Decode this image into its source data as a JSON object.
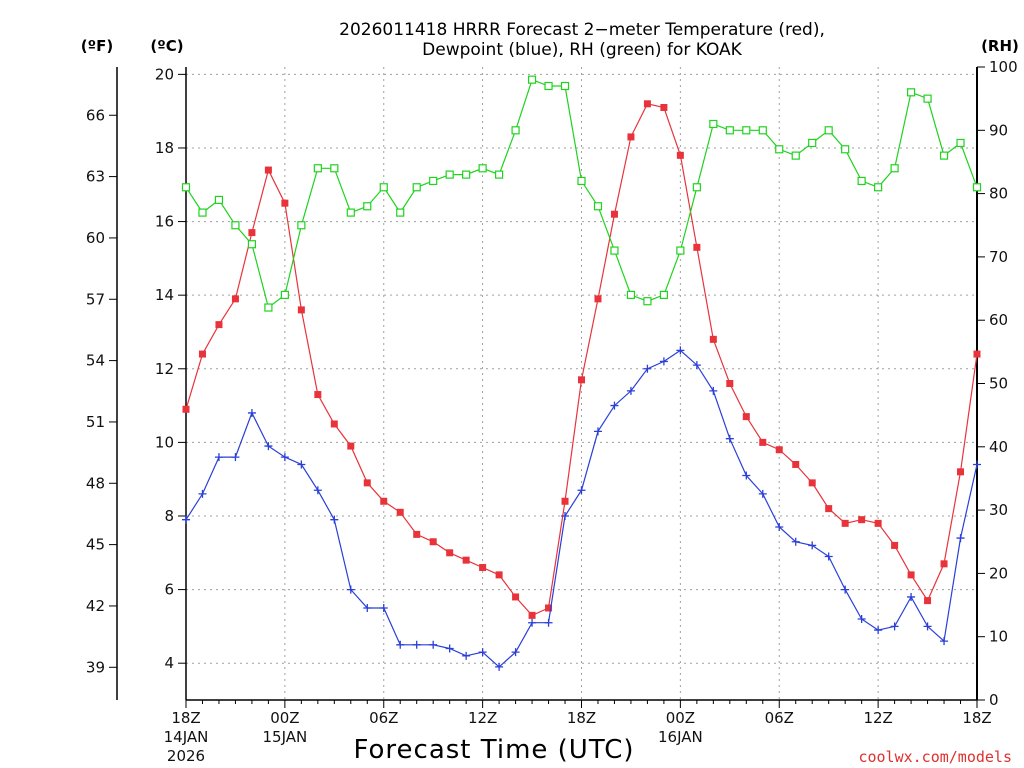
{
  "chart_data": {
    "type": "line",
    "title_lines": [
      "2026011418 HRRR Forecast 2−meter Temperature (red),",
      "Dewpoint (blue), RH (green) for KOAK"
    ],
    "unit_labels": {
      "fahrenheit": "(ºF)",
      "celsius": "(ºC)",
      "rh": "(RH)"
    },
    "xlabel": "Forecast Time (UTC)",
    "credit": "coolwx.com/models",
    "x_range": [
      0,
      48
    ],
    "celsius_range": [
      3,
      20.2
    ],
    "rh_range": [
      0,
      100
    ],
    "celsius_ticks": [
      4,
      6,
      8,
      10,
      12,
      14,
      16,
      18,
      20
    ],
    "fahrenheit_ticks": [
      39,
      42,
      45,
      48,
      51,
      54,
      57,
      60,
      63,
      66
    ],
    "rh_ticks": [
      0,
      10,
      20,
      30,
      40,
      50,
      60,
      70,
      80,
      90,
      100
    ],
    "x_ticks": [
      {
        "hour": 0,
        "label": "18Z",
        "date": "14JAN",
        "year": "2026"
      },
      {
        "hour": 6,
        "label": "00Z",
        "date": "15JAN",
        "year": ""
      },
      {
        "hour": 12,
        "label": "06Z",
        "date": "",
        "year": ""
      },
      {
        "hour": 18,
        "label": "12Z",
        "date": "",
        "year": ""
      },
      {
        "hour": 24,
        "label": "18Z",
        "date": "",
        "year": ""
      },
      {
        "hour": 30,
        "label": "00Z",
        "date": "16JAN",
        "year": ""
      },
      {
        "hour": 36,
        "label": "06Z",
        "date": "",
        "year": ""
      },
      {
        "hour": 42,
        "label": "12Z",
        "date": "",
        "year": ""
      },
      {
        "hour": 48,
        "label": "18Z",
        "date": "",
        "year": ""
      }
    ],
    "series": [
      {
        "name": "Temperature",
        "units": "ºC",
        "color": "#e8333b",
        "marker": "filled-square",
        "values": [
          10.9,
          12.4,
          13.2,
          13.9,
          15.7,
          17.4,
          16.5,
          13.6,
          11.3,
          10.5,
          9.9,
          8.9,
          8.4,
          8.1,
          7.5,
          7.3,
          7.0,
          6.8,
          6.6,
          6.4,
          5.8,
          5.3,
          5.5,
          8.4,
          11.7,
          13.9,
          16.2,
          18.3,
          19.2,
          19.1,
          17.8,
          15.3,
          12.8,
          11.6,
          10.7,
          10.0,
          9.8,
          9.4,
          8.9,
          8.2,
          7.8,
          7.9,
          7.8,
          7.2,
          6.4,
          5.7,
          6.7,
          9.2,
          12.4
        ]
      },
      {
        "name": "Dewpoint",
        "units": "ºC",
        "color": "#2a3fd8",
        "marker": "plus",
        "values": [
          7.9,
          8.6,
          9.6,
          9.6,
          10.8,
          9.9,
          9.6,
          9.4,
          8.7,
          7.9,
          6.0,
          5.5,
          5.5,
          4.5,
          4.5,
          4.5,
          4.4,
          4.2,
          4.3,
          3.9,
          4.3,
          5.1,
          5.1,
          8.0,
          8.7,
          10.3,
          11.0,
          11.4,
          12.0,
          12.2,
          12.5,
          12.1,
          11.4,
          10.1,
          9.1,
          8.6,
          7.7,
          7.3,
          7.2,
          6.9,
          6.0,
          5.2,
          4.9,
          5.0,
          5.8,
          5.0,
          4.6,
          7.4,
          9.4
        ]
      },
      {
        "name": "Relative Humidity",
        "units": "%",
        "color": "#1fd31f",
        "marker": "open-square",
        "values": [
          81,
          77,
          79,
          75,
          72,
          62,
          64,
          75,
          84,
          84,
          77,
          78,
          81,
          77,
          81,
          82,
          83,
          83,
          84,
          83,
          90,
          98,
          97,
          97,
          82,
          78,
          71,
          64,
          63,
          64,
          71,
          81,
          91,
          90,
          90,
          90,
          87,
          86,
          88,
          90,
          87,
          82,
          81,
          84,
          96,
          95,
          86,
          88,
          81
        ]
      }
    ]
  }
}
